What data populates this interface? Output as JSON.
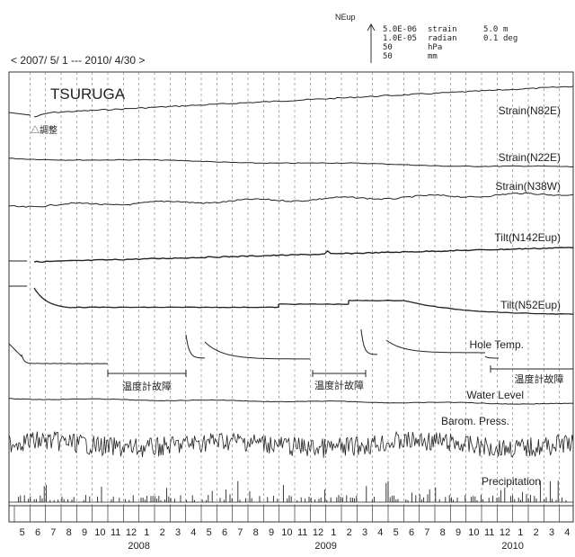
{
  "chart_data": {
    "type": "line",
    "station": "TSURUGA",
    "period": "< 2007/ 5/ 1 --- 2010/ 4/30 >",
    "x_start": "2007-05-01",
    "x_end": "2010-04-30",
    "scale_legend": {
      "direction": "NEup",
      "rows": [
        [
          "5.0E-06",
          "strain",
          "5.0",
          "m"
        ],
        [
          "1.0E-05",
          "radian",
          "0.1",
          "deg"
        ],
        [
          "50",
          "hPa",
          "",
          ""
        ],
        [
          "50",
          "mm",
          "",
          ""
        ]
      ]
    },
    "annotations": {
      "adjustment": "△調整",
      "thermometer_fault": "温度計故障"
    },
    "month_labels": [
      "5",
      "6",
      "7",
      "8",
      "9",
      "10",
      "11",
      "12",
      "1",
      "2",
      "3",
      "4",
      "5",
      "6",
      "7",
      "8",
      "9",
      "10",
      "11",
      "12",
      "1",
      "2",
      "3",
      "4",
      "5",
      "6",
      "7",
      "8",
      "9",
      "10",
      "11",
      "12",
      "1",
      "2",
      "3",
      "4"
    ],
    "year_labels": [
      "2008",
      "2009",
      "2010"
    ],
    "series": [
      {
        "name": "Strain(N82E)"
      },
      {
        "name": "Strain(N22E)"
      },
      {
        "name": "Strain(N38W)"
      },
      {
        "name": "Tilt(N142Eup)"
      },
      {
        "name": "Tilt(N52Eup)"
      },
      {
        "name": "Hole Temp."
      },
      {
        "name": "Water Level"
      },
      {
        "name": "Barom. Press."
      },
      {
        "name": "Precipitation"
      }
    ]
  }
}
